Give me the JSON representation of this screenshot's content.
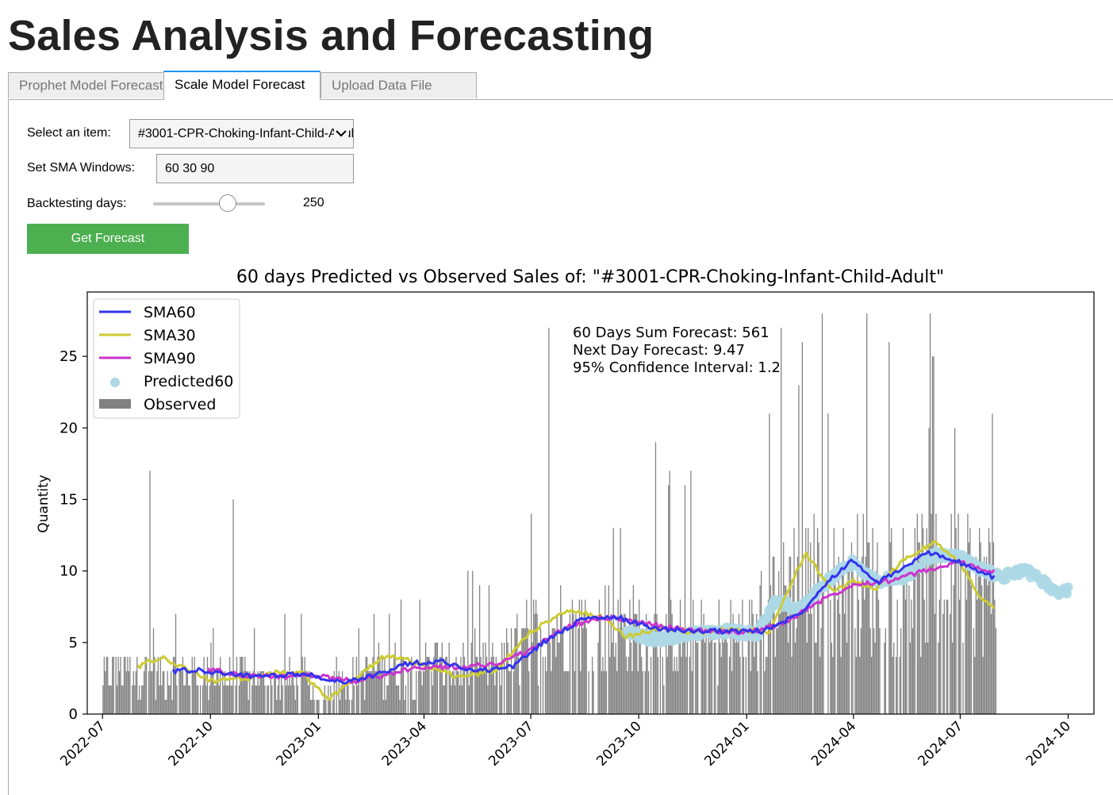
{
  "app": {
    "title": "Sales Analysis and Forecasting"
  },
  "tabs": [
    {
      "label": "Prophet Model Forecast",
      "active": false
    },
    {
      "label": "Scale Model Forecast",
      "active": true
    },
    {
      "label": "Upload Data File",
      "active": false
    }
  ],
  "form": {
    "item_label": "Select an item:",
    "item_value": "#3001-CPR-Choking-Infant-Child-Adult",
    "sma_label": "Set SMA Windows:",
    "sma_value": "60 30 90",
    "backtest_label": "Backtesting days:",
    "backtest_value": "250",
    "backtest_fraction": 0.67,
    "button_label": "Get Forecast"
  },
  "colors": {
    "sma60": "#3333ee",
    "sma30": "#cccc33",
    "sma90": "#cc33cc",
    "predicted": "#add8e6",
    "observed": "#808080",
    "button": "#4caf50",
    "tab_accent": "#2196f3"
  },
  "chart_data": {
    "type": "bar",
    "title": "60 days Predicted vs Observed Sales of: \"#3001-CPR-Choking-Infant-Child-Adult\"",
    "xlabel": "",
    "ylabel": "Quantity",
    "xlim": [
      "2022-06-18",
      "2024-10-23"
    ],
    "ylim": [
      0,
      29.5
    ],
    "yticks": [
      0,
      5,
      10,
      15,
      20,
      25
    ],
    "xticks": [
      "2022-07",
      "2022-10",
      "2023-01",
      "2023-04",
      "2023-07",
      "2023-10",
      "2024-01",
      "2024-04",
      "2024-07",
      "2024-10"
    ],
    "legend": {
      "placement": "top-left",
      "entries": [
        "SMA60",
        "SMA30",
        "SMA90",
        "Predicted60",
        "Observed"
      ]
    },
    "annotations": [
      "60 Days Sum Forecast: 561",
      "Next Day Forecast: 9.47",
      "95% Confidence Interval:  1.2"
    ],
    "observed_period": [
      "2022-07-01",
      "2024-07-31"
    ],
    "observed_level": [
      {
        "date": "2022-07-01",
        "value": 3.0
      },
      {
        "date": "2022-09-01",
        "value": 3.0
      },
      {
        "date": "2022-12-20",
        "value": 2.5
      },
      {
        "date": "2023-01-01",
        "value": 0.5
      },
      {
        "date": "2023-01-10",
        "value": 2.5
      },
      {
        "date": "2023-04-01",
        "value": 3.5
      },
      {
        "date": "2023-06-01",
        "value": 3.5
      },
      {
        "date": "2023-07-15",
        "value": 6.5
      },
      {
        "date": "2023-10-01",
        "value": 6.0
      },
      {
        "date": "2024-01-01",
        "value": 5.5
      },
      {
        "date": "2024-02-01",
        "value": 9.5
      },
      {
        "date": "2024-04-01",
        "value": 9.5
      },
      {
        "date": "2024-07-31",
        "value": 9.5
      }
    ],
    "observed_peaks": [
      {
        "date": "2022-08-10",
        "value": 17
      },
      {
        "date": "2022-10-20",
        "value": 15
      },
      {
        "date": "2023-07-16",
        "value": 27
      },
      {
        "date": "2023-10-15",
        "value": 19
      },
      {
        "date": "2024-03-10",
        "value": 21
      },
      {
        "date": "2024-04-12",
        "value": 28
      },
      {
        "date": "2024-05-01",
        "value": 26
      },
      {
        "date": "2024-06-05",
        "value": 28
      },
      {
        "date": "2024-07-28",
        "value": 21
      }
    ],
    "series": [
      {
        "name": "SMA60",
        "points": [
          [
            "2022-08-30",
            3.0
          ],
          [
            "2022-09-20",
            3.1
          ],
          [
            "2022-10-15",
            2.8
          ],
          [
            "2022-11-15",
            2.6
          ],
          [
            "2022-12-10",
            2.8
          ],
          [
            "2022-12-30",
            2.7
          ],
          [
            "2023-01-15",
            2.2
          ],
          [
            "2023-02-15",
            2.6
          ],
          [
            "2023-03-15",
            3.5
          ],
          [
            "2023-04-15",
            3.7
          ],
          [
            "2023-05-15",
            3.0
          ],
          [
            "2023-06-15",
            3.3
          ],
          [
            "2023-07-15",
            5.2
          ],
          [
            "2023-08-15",
            6.7
          ],
          [
            "2023-09-15",
            6.7
          ],
          [
            "2023-10-15",
            6.0
          ],
          [
            "2023-11-15",
            5.8
          ],
          [
            "2023-12-15",
            5.8
          ],
          [
            "2024-01-15",
            5.8
          ],
          [
            "2024-02-15",
            7.0
          ],
          [
            "2024-03-10",
            9.3
          ],
          [
            "2024-04-01",
            10.8
          ],
          [
            "2024-04-20",
            9.1
          ],
          [
            "2024-05-15",
            10.3
          ],
          [
            "2024-06-05",
            11.3
          ],
          [
            "2024-06-25",
            10.8
          ],
          [
            "2024-07-10",
            10.2
          ],
          [
            "2024-07-31",
            9.5
          ]
        ]
      },
      {
        "name": "SMA30",
        "points": [
          [
            "2022-07-31",
            3.3
          ],
          [
            "2022-08-20",
            4.0
          ],
          [
            "2022-09-15",
            3.0
          ],
          [
            "2022-10-01",
            2.3
          ],
          [
            "2022-11-01",
            2.5
          ],
          [
            "2022-12-01",
            3.0
          ],
          [
            "2022-12-20",
            2.8
          ],
          [
            "2023-01-10",
            1.0
          ],
          [
            "2023-02-01",
            2.5
          ],
          [
            "2023-03-01",
            4.2
          ],
          [
            "2023-04-01",
            3.4
          ],
          [
            "2023-05-01",
            2.6
          ],
          [
            "2023-06-01",
            3.0
          ],
          [
            "2023-07-01",
            5.8
          ],
          [
            "2023-08-01",
            7.2
          ],
          [
            "2023-09-01",
            6.8
          ],
          [
            "2023-09-20",
            5.4
          ],
          [
            "2023-10-20",
            6.0
          ],
          [
            "2023-11-20",
            5.7
          ],
          [
            "2023-12-20",
            5.9
          ],
          [
            "2024-01-20",
            5.8
          ],
          [
            "2024-02-20",
            11.3
          ],
          [
            "2024-03-15",
            8.5
          ],
          [
            "2024-04-01",
            9.3
          ],
          [
            "2024-04-20",
            8.7
          ],
          [
            "2024-05-15",
            10.9
          ],
          [
            "2024-06-10",
            12.0
          ],
          [
            "2024-07-01",
            10.5
          ],
          [
            "2024-07-20",
            8.0
          ],
          [
            "2024-07-31",
            7.3
          ]
        ]
      },
      {
        "name": "SMA90",
        "points": [
          [
            "2022-09-29",
            3.1
          ],
          [
            "2022-11-01",
            2.7
          ],
          [
            "2022-12-01",
            2.6
          ],
          [
            "2023-01-01",
            2.7
          ],
          [
            "2023-02-01",
            2.3
          ],
          [
            "2023-03-01",
            2.8
          ],
          [
            "2023-04-01",
            3.3
          ],
          [
            "2023-05-01",
            3.3
          ],
          [
            "2023-06-01",
            3.5
          ],
          [
            "2023-07-01",
            4.5
          ],
          [
            "2023-08-01",
            6.1
          ],
          [
            "2023-09-01",
            6.8
          ],
          [
            "2023-10-01",
            6.4
          ],
          [
            "2023-11-01",
            6.0
          ],
          [
            "2023-12-01",
            5.8
          ],
          [
            "2024-01-01",
            5.7
          ],
          [
            "2024-02-01",
            6.3
          ],
          [
            "2024-03-01",
            7.8
          ],
          [
            "2024-04-01",
            9.1
          ],
          [
            "2024-05-01",
            9.3
          ],
          [
            "2024-06-01",
            10.0
          ],
          [
            "2024-07-01",
            10.6
          ],
          [
            "2024-07-31",
            9.9
          ]
        ]
      },
      {
        "name": "Predicted60",
        "points": [
          [
            "2023-09-20",
            5.7
          ],
          [
            "2023-10-15",
            5.2
          ],
          [
            "2023-11-15",
            5.6
          ],
          [
            "2023-12-15",
            5.8
          ],
          [
            "2024-01-10",
            5.6
          ],
          [
            "2024-01-25",
            8.0
          ],
          [
            "2024-02-15",
            7.3
          ],
          [
            "2024-03-10",
            9.3
          ],
          [
            "2024-04-01",
            10.6
          ],
          [
            "2024-04-20",
            9.3
          ],
          [
            "2024-05-15",
            9.6
          ],
          [
            "2024-06-05",
            11.0
          ],
          [
            "2024-06-25",
            11.2
          ],
          [
            "2024-07-15",
            10.3
          ],
          [
            "2024-08-05",
            9.6
          ],
          [
            "2024-08-25",
            10.0
          ],
          [
            "2024-09-10",
            9.3
          ],
          [
            "2024-09-20",
            8.5
          ],
          [
            "2024-10-01",
            8.6
          ]
        ]
      }
    ]
  }
}
